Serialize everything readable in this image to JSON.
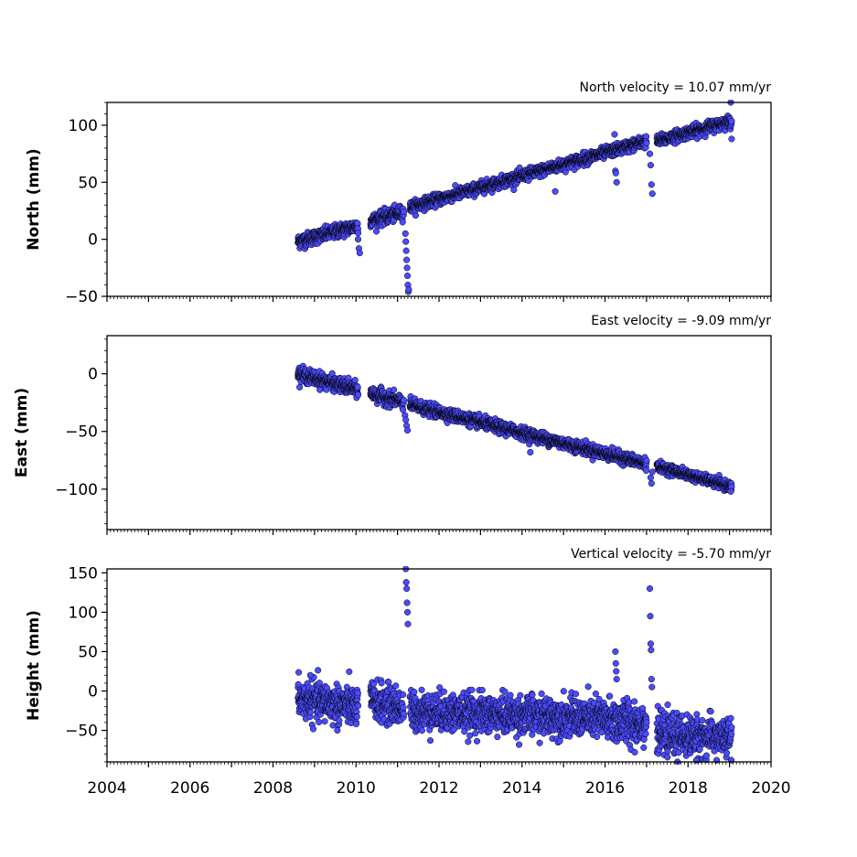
{
  "chart_data": [
    {
      "type": "scatter",
      "title": "North velocity = 10.07 mm/yr",
      "ylabel": "North (mm)",
      "ylim": [
        -50,
        120
      ],
      "yticks": [
        -50,
        0,
        50,
        100
      ],
      "xlim": [
        2004,
        2020
      ],
      "show_xticklabels": false,
      "marker_color": "#4b4bff",
      "marker_edge": "#000000",
      "segments": [
        {
          "x": [
            2008.6,
            2010.05
          ],
          "y": [
            -2,
            12
          ],
          "spread": 3
        },
        {
          "x": [
            2010.35,
            2011.15
          ],
          "y": [
            16,
            24
          ],
          "spread": 3
        },
        {
          "x": [
            2011.3,
            2017.0
          ],
          "y": [
            28,
            86
          ],
          "spread": 2.5
        },
        {
          "x": [
            2017.25,
            2019.05
          ],
          "y": [
            86,
            104
          ],
          "spread": 2.5
        }
      ],
      "outliers": {
        "x": [
          2010.05,
          2010.07,
          2010.09,
          2011.19,
          2011.2,
          2011.21,
          2011.22,
          2011.23,
          2011.24,
          2011.25,
          2011.26,
          2011.27,
          2014.8,
          2016.23,
          2016.25,
          2016.28,
          2016.26,
          2017.08,
          2017.1,
          2017.12,
          2017.14,
          2019.03,
          2019.05
        ],
        "y": [
          0,
          -8,
          -12,
          5,
          -2,
          -10,
          -18,
          -25,
          -32,
          -40,
          -46,
          -44,
          42,
          92,
          60,
          50,
          58,
          75,
          65,
          48,
          40,
          120,
          88
        ]
      }
    },
    {
      "type": "scatter",
      "title": "East velocity = -9.09 mm/yr",
      "ylabel": "East (mm)",
      "ylim": [
        -135,
        33
      ],
      "yticks": [
        -100,
        -50,
        0
      ],
      "xlim": [
        2004,
        2020
      ],
      "show_xticklabels": false,
      "marker_color": "#4b4bff",
      "marker_edge": "#000000",
      "segments": [
        {
          "x": [
            2008.6,
            2010.05
          ],
          "y": [
            0,
            -14
          ],
          "spread": 3
        },
        {
          "x": [
            2010.35,
            2011.15
          ],
          "y": [
            -17,
            -25
          ],
          "spread": 3
        },
        {
          "x": [
            2011.3,
            2017.0
          ],
          "y": [
            -27,
            -78
          ],
          "spread": 2.5
        },
        {
          "x": [
            2017.25,
            2019.05
          ],
          "y": [
            -80,
            -98
          ],
          "spread": 2
        }
      ],
      "outliers": {
        "x": [
          2011.18,
          2011.2,
          2011.22,
          2011.24,
          2014.2,
          2017.1,
          2017.12,
          2017.14,
          2019.03
        ],
        "y": [
          -36,
          -40,
          -45,
          -49,
          -68,
          -90,
          -95,
          -85,
          -102
        ]
      }
    },
    {
      "type": "scatter",
      "title": "Vertical velocity = -5.70 mm/yr",
      "ylabel": "Height (mm)",
      "ylim": [
        -90,
        155
      ],
      "yticks": [
        -50,
        0,
        50,
        100,
        150
      ],
      "xlim": [
        2004,
        2020
      ],
      "xticks": [
        2004,
        2006,
        2008,
        2010,
        2012,
        2014,
        2016,
        2018,
        2020
      ],
      "show_xticklabels": true,
      "marker_color": "#4b4bff",
      "marker_edge": "#000000",
      "segments": [
        {
          "x": [
            2008.6,
            2010.05
          ],
          "y": [
            -10,
            -20
          ],
          "spread": 12
        },
        {
          "x": [
            2010.35,
            2011.15
          ],
          "y": [
            -12,
            -22
          ],
          "spread": 12
        },
        {
          "x": [
            2011.3,
            2016.0
          ],
          "y": [
            -25,
            -35
          ],
          "spread": 12
        },
        {
          "x": [
            2016.0,
            2017.0
          ],
          "y": [
            -38,
            -40
          ],
          "spread": 14
        },
        {
          "x": [
            2017.25,
            2019.05
          ],
          "y": [
            -55,
            -60
          ],
          "spread": 12
        }
      ],
      "outliers": {
        "x": [
          2011.2,
          2011.21,
          2011.22,
          2011.23,
          2011.24,
          2011.25,
          2016.25,
          2016.26,
          2016.27,
          2016.28,
          2017.08,
          2017.09,
          2017.1,
          2017.11,
          2017.12,
          2017.13,
          2009.55,
          2008.9,
          2018.2
        ],
        "y": [
          155,
          138,
          130,
          112,
          100,
          85,
          50,
          35,
          25,
          15,
          130,
          95,
          60,
          52,
          15,
          5,
          -50,
          20,
          -88
        ]
      }
    }
  ]
}
